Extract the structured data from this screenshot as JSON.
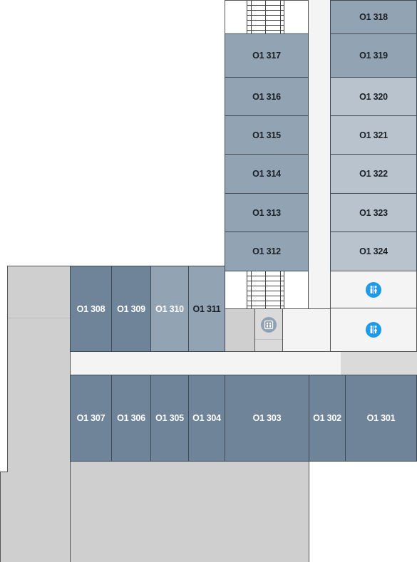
{
  "rooms": {
    "r301": "O1 301",
    "r302": "O1 302",
    "r303": "O1 303",
    "r304": "O1 304",
    "r305": "O1 305",
    "r306": "O1 306",
    "r307": "O1 307",
    "r308": "O1 308",
    "r309": "O1 309",
    "r310": "O1 310",
    "r311": "O1 311",
    "r312": "O1 312",
    "r313": "O1 313",
    "r314": "O1 314",
    "r315": "O1 315",
    "r316": "O1 316",
    "r317": "O1 317",
    "r318": "O1 318",
    "r319": "O1 319",
    "r320": "O1 320",
    "r321": "O1 321",
    "r322": "O1 322",
    "r323": "O1 323",
    "r324": "O1 324"
  },
  "icons": {
    "restroom_upper": "restroom-icon",
    "restroom_lower": "restroom-icon",
    "elevator": "elevator-icon"
  },
  "colors": {
    "room_dark": "#6f8499",
    "room_mid": "#92a3b3",
    "room_light": "#b8c3cd",
    "restroom_badge": "#1e9be8",
    "elevator_badge": "#8ea0b4",
    "unassigned_area": "#cfcfcf",
    "corridor": "#f4f4f4"
  }
}
